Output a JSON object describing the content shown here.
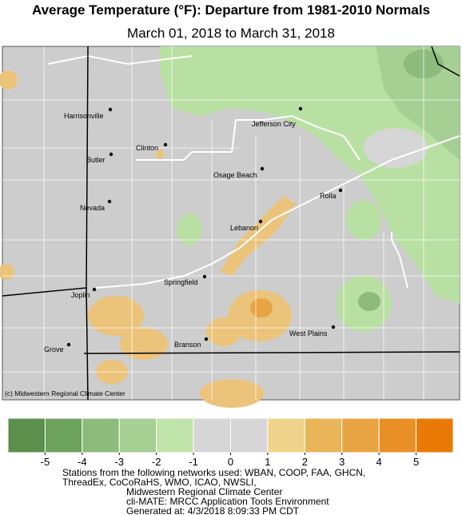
{
  "header": {
    "title": "Average Temperature (°F): Departure from 1981-2010 Normals",
    "subtitle": "March 01, 2018 to March 31, 2018"
  },
  "map": {
    "cities": [
      "Harrisonville",
      "Jefferson City",
      "Clinton",
      "Butler",
      "Osage Beach",
      "Rolla",
      "Nevada",
      "Lebanon",
      "Springfield",
      "Joplin",
      "West Plains",
      "Branson",
      "Grove"
    ],
    "credit": "(c) Midwestern Regional Climate Center"
  },
  "legend": {
    "colors": [
      "#5b8f4b",
      "#6ea35e",
      "#8cbb7c",
      "#a6cf94",
      "#c0e4aa",
      "#d6d6d6",
      "#d6d6d6",
      "#f0d38a",
      "#e9b558",
      "#e8a443",
      "#e88f25",
      "#e97a06"
    ],
    "range": [
      -6,
      6
    ],
    "ticks": [
      -5,
      -4,
      -3,
      -2,
      -1,
      0,
      1,
      2,
      3,
      4,
      5
    ]
  },
  "footer": [
    "Stations from the following networks used: WBAN, COOP, FAA, GHCN,",
    "ThreadEx, CoCoRaHS, WMO, ICAO, NWSLI,",
    "Midwestern Regional Climate Center",
    "cli-MATE: MRCC Application Tools Environment",
    "Generated at: 4/3/2018 8:09:33 PM CDT"
  ]
}
